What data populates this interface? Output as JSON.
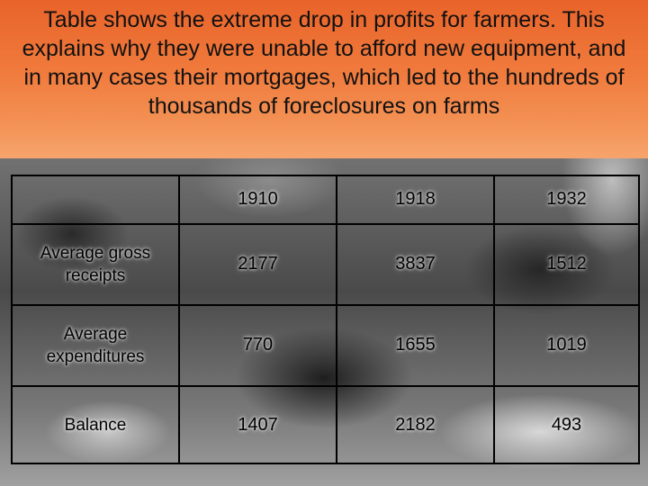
{
  "header": {
    "title": "Table shows the extreme drop in profits for farmers. This explains why they were unable to afford new equipment, and in many cases their mortgages, which led to the hundreds of thousands of foreclosures on farms"
  },
  "table": {
    "columns": [
      "",
      "1910",
      "1918",
      "1932"
    ],
    "rows": [
      {
        "label": "Average gross receipts",
        "values": [
          "2177",
          "3837",
          "1512"
        ]
      },
      {
        "label": "Average expenditures",
        "values": [
          "770",
          "1655",
          "1019"
        ]
      },
      {
        "label": "Balance",
        "values": [
          "1407",
          "2182",
          "493"
        ]
      }
    ]
  },
  "colors": {
    "header_top": "#e8632a",
    "header_bottom": "#f6a46c",
    "text": "#000000"
  }
}
